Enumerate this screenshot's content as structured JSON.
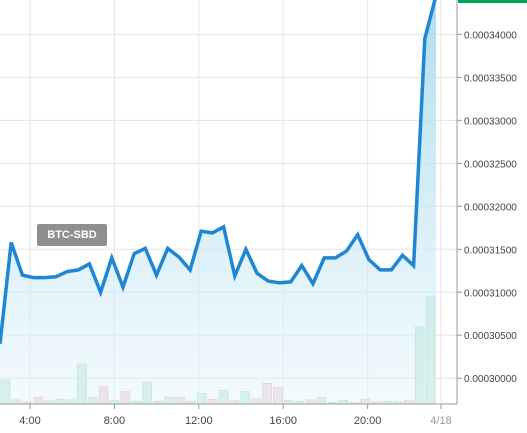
{
  "chart_data": {
    "type": "line",
    "series_label": "BTC-SBD",
    "y_ticks": [
      "0.00030000",
      "0.00030500",
      "0.00031000",
      "0.00031500",
      "0.00032000",
      "0.00032500",
      "0.00033000",
      "0.00033500",
      "0.00034000"
    ],
    "x_ticks": [
      "4:00",
      "8:00",
      "12:00",
      "16:00",
      "20:00",
      "4/18"
    ],
    "ylim": [
      0.000297,
      0.000344
    ],
    "price": {
      "values": [
        0.000304,
        0.0003158,
        0.000312,
        0.0003117,
        0.0003117,
        0.0003118,
        0.0003124,
        0.0003126,
        0.0003133,
        0.00031,
        0.000314,
        0.0003106,
        0.0003145,
        0.0003151,
        0.000312,
        0.0003151,
        0.0003141,
        0.0003126,
        0.0003171,
        0.0003169,
        0.0003176,
        0.0003119,
        0.000315,
        0.0003122,
        0.0003113,
        0.0003111,
        0.0003112,
        0.0003131,
        0.000311,
        0.000314,
        0.000314,
        0.0003148,
        0.0003167,
        0.0003138,
        0.0003126,
        0.0003126,
        0.0003143,
        0.0003131,
        0.0003395,
        0.0003445
      ],
      "color": "#1f86d3",
      "fill_top": "#9fd6ec",
      "fill_bottom": "#e6f5fb"
    },
    "volume": {
      "values": [
        35,
        6,
        3,
        10,
        5,
        7,
        6,
        58,
        10,
        25,
        5,
        18,
        4,
        32,
        4,
        10,
        10,
        4,
        15,
        7,
        20,
        5,
        18,
        8,
        30,
        24,
        5,
        4,
        6,
        10,
        2,
        5,
        2,
        7,
        3,
        4,
        3,
        5,
        112,
        156
      ],
      "up_color": "#c8ebdc",
      "down_color": "#eed4d8",
      "up_border": "#8ccfb0",
      "down_border": "#d4a8b0"
    },
    "colors": {
      "grid": "#e6e6e6",
      "axis": "#9a9a9a",
      "last_price_marker": "#00a651"
    }
  }
}
